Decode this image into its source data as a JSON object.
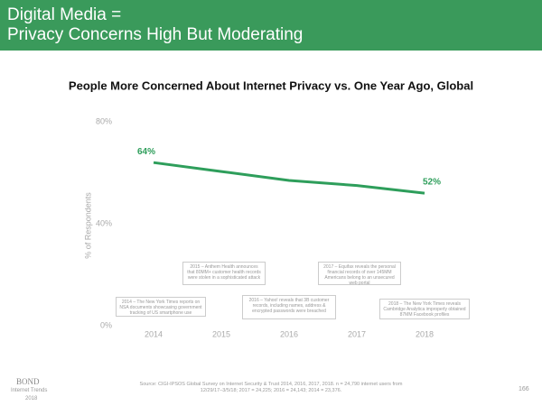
{
  "header": {
    "title_line1": "Digital Media =",
    "title_line2": "Privacy Concerns High But Moderating"
  },
  "chart_data": {
    "type": "line",
    "title": "People More Concerned About Internet Privacy vs. One Year Ago, Global",
    "y_label": "% of Respondents",
    "categories": [
      "2014",
      "2015",
      "2016",
      "2017",
      "2018"
    ],
    "values": [
      64,
      60.5,
      57,
      55,
      52
    ],
    "value_labels": [
      "64%",
      null,
      null,
      null,
      "52%"
    ],
    "color": "#2e9e5b",
    "ylim": [
      0,
      80
    ],
    "yticks": [
      {
        "value": 0,
        "label": "0%"
      },
      {
        "value": 40,
        "label": "40%"
      },
      {
        "value": 80,
        "label": "80%"
      }
    ],
    "grid": false,
    "annotations": [
      "2015 – Anthem Health announces that 80MM+ customer health records were stolen in a sophisticated attack",
      "2017 – Equifax reveals the personal financial records of over 145MM Americans belong to an unsecured web portal",
      "2014 – The New York Times reports on NSA documents showcasing government tracking of US smartphone use",
      "2016 – Yahoo! reveals that 3B customer records, including names, address & encrypted passwords were breached",
      "2018 – The New York Times reveals Cambridge Analytica improperly obtained 87MM Facebook profiles"
    ]
  },
  "footer": {
    "source": "Source: CIGI-IPSOS Global Survey on Internet Security & Trust 2014, 2016, 2017, 2018. n = 24,790 internet users from 12/29/17–3/5/18; 2017 = 24,225; 2016 = 24,143; 2014 = 23,376.",
    "brand": "BOND",
    "brand_sub1": "Internet Trends",
    "brand_sub2": "2018",
    "page": "166"
  }
}
